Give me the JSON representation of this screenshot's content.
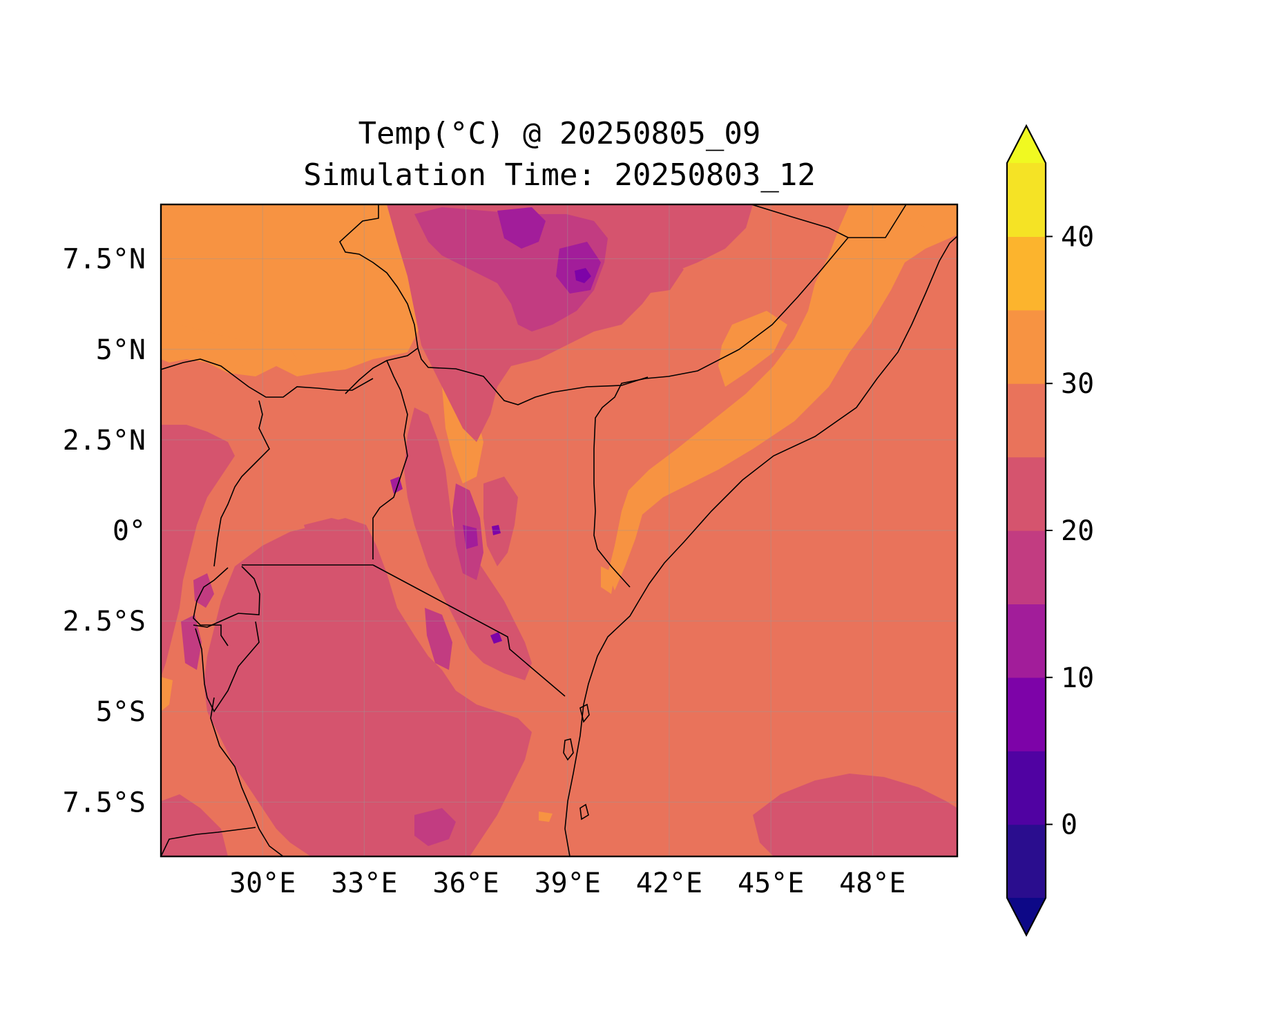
{
  "title_line1": "Temp(°C) @ 20250805_09",
  "title_line2": "Simulation Time: 20250803_12",
  "map": {
    "extent": {
      "lon_min": 27.0,
      "lon_max": 50.5,
      "lat_min": -9.0,
      "lat_max": 9.0
    },
    "x_ticks": [
      {
        "value": 30,
        "label": "30°E"
      },
      {
        "value": 33,
        "label": "33°E"
      },
      {
        "value": 36,
        "label": "36°E"
      },
      {
        "value": 39,
        "label": "39°E"
      },
      {
        "value": 42,
        "label": "42°E"
      },
      {
        "value": 45,
        "label": "45°E"
      },
      {
        "value": 48,
        "label": "48°E"
      }
    ],
    "y_ticks": [
      {
        "value": 7.5,
        "label": "7.5°N"
      },
      {
        "value": 5,
        "label": "5°N"
      },
      {
        "value": 2.5,
        "label": "2.5°N"
      },
      {
        "value": 0,
        "label": "0°"
      },
      {
        "value": -2.5,
        "label": "2.5°S"
      },
      {
        "value": -5,
        "label": "5°S"
      },
      {
        "value": -7.5,
        "label": "7.5°S"
      }
    ],
    "gridlines": true
  },
  "colorbar": {
    "levels": [
      -5,
      0,
      5,
      10,
      15,
      20,
      25,
      30,
      35,
      40,
      45
    ],
    "colors": [
      "#2a0d8e",
      "#5002a2",
      "#7d03a8",
      "#a21d9a",
      "#c23c81",
      "#d5546e",
      "#e9735b",
      "#f79342",
      "#fcb42d",
      "#f5e325"
    ],
    "under_color": "#0d0887",
    "over_color": "#f0f921",
    "extend": "both",
    "ticks": [
      {
        "value": 0,
        "label": "0"
      },
      {
        "value": 10,
        "label": "10"
      },
      {
        "value": 20,
        "label": "20"
      },
      {
        "value": 30,
        "label": "30"
      },
      {
        "value": 40,
        "label": "40"
      }
    ]
  },
  "field_colors": {
    "t30_35": "#f79342",
    "t25_30": "#e9735b",
    "t20_25": "#d5546e",
    "t15_20": "#c23c81",
    "t10_15": "#a21d9a",
    "t5_10": "#7d03a8"
  }
}
